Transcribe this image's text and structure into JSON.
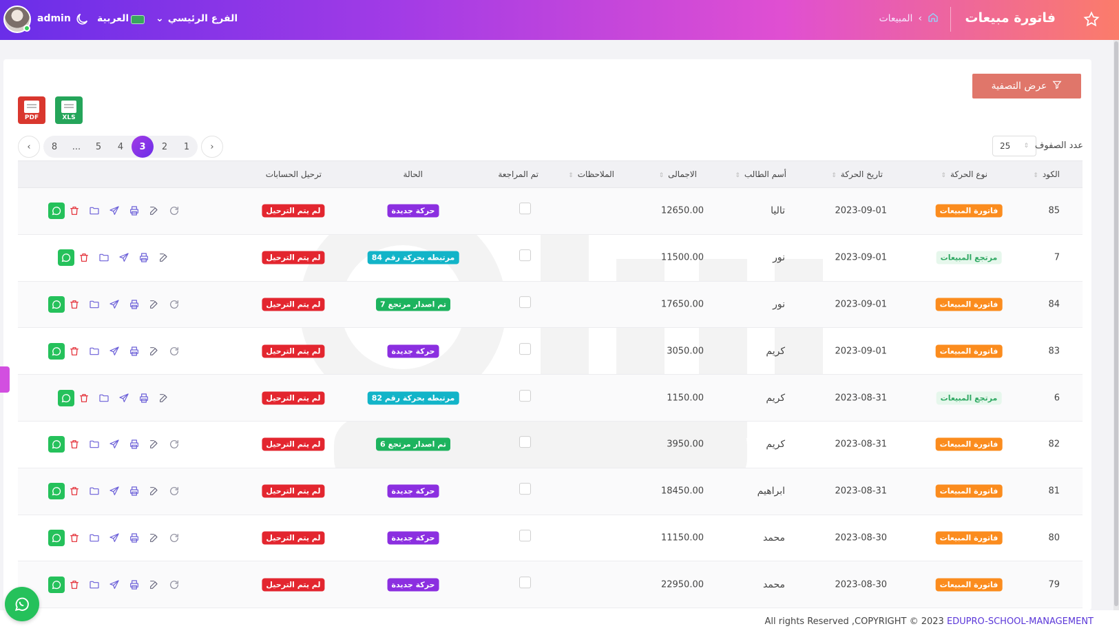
{
  "header": {
    "title": "فاتورة مبيعات",
    "breadcrumb": "المبيعات",
    "branch": "الفرع الرئيسي",
    "language": "العربية",
    "username": "admin"
  },
  "toolbar": {
    "filter_label": "عرض التصفية",
    "pdf_label": "PDF",
    "xls_label": "XLS",
    "rows_label": "عدد الصفوف",
    "rows_value": "25"
  },
  "pagination": {
    "pages": [
      "1",
      "2",
      "3",
      "4",
      "5",
      "...",
      "8"
    ],
    "active": "3"
  },
  "table": {
    "headers": {
      "code": "الكود",
      "type": "نوع الحركة",
      "date": "تاريخ الحركة",
      "student": "أسم الطالب",
      "total": "الاجمالى",
      "notes": "الملاحظات",
      "reviewed": "تم المراجعة",
      "status": "الحالة",
      "posting": "ترحيل الحسابات"
    },
    "rows": [
      {
        "code": "85",
        "type": "فاتورة المبيعات",
        "type_kind": "sale",
        "date": "2023-09-01",
        "student": "تاليا",
        "total": "12650.00",
        "status": "حركة جديدة",
        "status_kind": "new",
        "posting": "لم يتم الترحيل"
      },
      {
        "code": "7",
        "type": "مرتجع المبيعات",
        "type_kind": "ret",
        "date": "2023-09-01",
        "student": "نور",
        "total": "11500.00",
        "status": "مرتبطه بحركة رقم 84",
        "status_kind": "linked",
        "posting": "لم يتم الترحيل"
      },
      {
        "code": "84",
        "type": "فاتورة المبيعات",
        "type_kind": "sale",
        "date": "2023-09-01",
        "student": "نور",
        "total": "17650.00",
        "status": "تم اصدار مرتجع 7",
        "status_kind": "issued",
        "posting": "لم يتم الترحيل"
      },
      {
        "code": "83",
        "type": "فاتورة المبيعات",
        "type_kind": "sale",
        "date": "2023-09-01",
        "student": "كريم",
        "total": "3050.00",
        "status": "حركة جديدة",
        "status_kind": "new",
        "posting": "لم يتم الترحيل"
      },
      {
        "code": "6",
        "type": "مرتجع المبيعات",
        "type_kind": "ret",
        "date": "2023-08-31",
        "student": "كريم",
        "total": "1150.00",
        "status": "مرتبطه بحركة رقم 82",
        "status_kind": "linked",
        "posting": "لم يتم الترحيل"
      },
      {
        "code": "82",
        "type": "فاتورة المبيعات",
        "type_kind": "sale",
        "date": "2023-08-31",
        "student": "كريم",
        "total": "3950.00",
        "status": "تم اصدار مرتجع 6",
        "status_kind": "issued",
        "posting": "لم يتم الترحيل"
      },
      {
        "code": "81",
        "type": "فاتورة المبيعات",
        "type_kind": "sale",
        "date": "2023-08-31",
        "student": "ابراهيم",
        "total": "18450.00",
        "status": "حركة جديدة",
        "status_kind": "new",
        "posting": "لم يتم الترحيل"
      },
      {
        "code": "80",
        "type": "فاتورة المبيعات",
        "type_kind": "sale",
        "date": "2023-08-30",
        "student": "محمد",
        "total": "11150.00",
        "status": "حركة جديدة",
        "status_kind": "new",
        "posting": "لم يتم الترحيل"
      },
      {
        "code": "79",
        "type": "فاتورة المبيعات",
        "type_kind": "sale",
        "date": "2023-08-30",
        "student": "محمد",
        "total": "22950.00",
        "status": "حركة جديدة",
        "status_kind": "new",
        "posting": "لم يتم الترحيل"
      }
    ]
  },
  "footer": {
    "text": "All rights Reserved ,COPYRIGHT © 2023",
    "brand": "EDUPRO-SCHOOL-MANAGEMENT"
  },
  "colors": {
    "header_gradient": [
      "#6a2ee8",
      "#a13be6",
      "#e04fd2",
      "#fb7c6a"
    ],
    "filter_button": "#e0766a",
    "sale_badge": "#fb8c1e",
    "new_badge": "#8b2fe0",
    "linked_badge": "#12b4c8",
    "issued_badge": "#1db35e",
    "posting_badge": "#e3262f",
    "whatsapp": "#25c15b"
  },
  "icons": [
    "star-icon",
    "home-icon",
    "moon-icon",
    "filter-icon",
    "refresh-icon",
    "edit-icon",
    "print-icon",
    "send-icon",
    "folder-icon",
    "trash-icon",
    "whatsapp-icon"
  ]
}
